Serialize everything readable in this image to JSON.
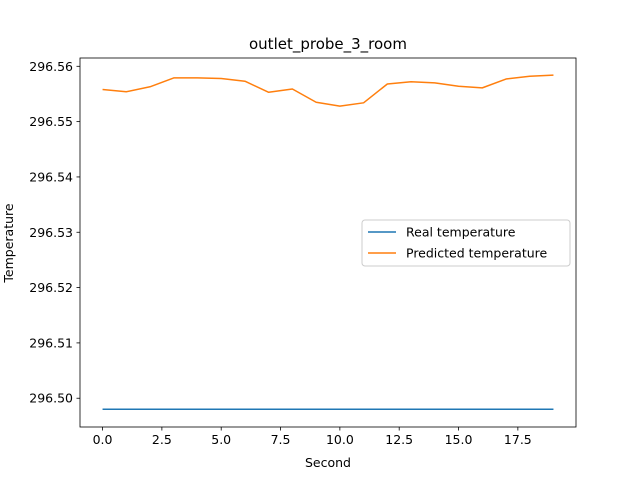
{
  "chart_data": {
    "type": "line",
    "title": "outlet_probe_3_room",
    "xlabel": "Second",
    "ylabel": "Temperature",
    "xlim": [
      -0.95,
      19.95
    ],
    "ylim": [
      296.4948,
      296.5615
    ],
    "xticks": [
      0.0,
      2.5,
      5.0,
      7.5,
      10.0,
      12.5,
      15.0,
      17.5
    ],
    "xtick_labels": [
      "0.0",
      "2.5",
      "5.0",
      "7.5",
      "10.0",
      "12.5",
      "15.0",
      "17.5"
    ],
    "yticks": [
      296.5,
      296.51,
      296.52,
      296.53,
      296.54,
      296.55,
      296.56
    ],
    "ytick_labels": [
      "296.50",
      "296.51",
      "296.52",
      "296.53",
      "296.54",
      "296.55",
      "296.56"
    ],
    "x": [
      0,
      1,
      2,
      3,
      4,
      5,
      6,
      7,
      8,
      9,
      10,
      11,
      12,
      13,
      14,
      15,
      16,
      17,
      18,
      19
    ],
    "series": [
      {
        "name": "Real temperature",
        "color": "#1f77b4",
        "values": [
          296.498,
          296.498,
          296.498,
          296.498,
          296.498,
          296.498,
          296.498,
          296.498,
          296.498,
          296.498,
          296.498,
          296.498,
          296.498,
          296.498,
          296.498,
          296.498,
          296.498,
          296.498,
          296.498,
          296.498
        ]
      },
      {
        "name": "Predicted temperature",
        "color": "#ff7f0e",
        "values": [
          296.5558,
          296.5554,
          296.5563,
          296.5579,
          296.5579,
          296.5578,
          296.5573,
          296.5553,
          296.5559,
          296.5535,
          296.5528,
          296.5534,
          296.5568,
          296.5572,
          296.557,
          296.5564,
          296.5561,
          296.5577,
          296.5582,
          296.5584
        ]
      }
    ],
    "legend_position": "center-right",
    "grid": false
  }
}
